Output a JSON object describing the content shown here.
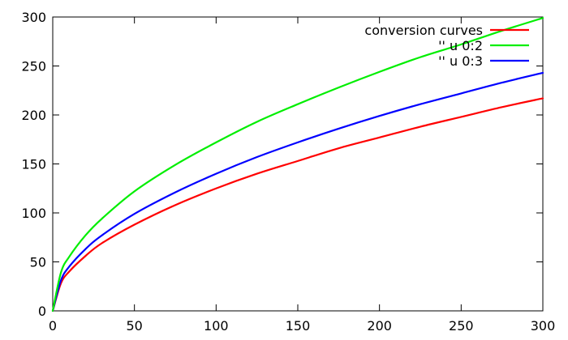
{
  "chart_data": {
    "type": "line",
    "title": "",
    "xlabel": "",
    "ylabel": "",
    "xlim": [
      0,
      300
    ],
    "ylim": [
      0,
      300
    ],
    "x_ticks": [
      0,
      50,
      100,
      150,
      200,
      250,
      300
    ],
    "y_ticks": [
      0,
      50,
      100,
      150,
      200,
      250,
      300
    ],
    "grid": false,
    "legend_position": "top-right",
    "series": [
      {
        "name": "conversion curves",
        "color": "#ff0000",
        "x": [
          0,
          5,
          10,
          20,
          30,
          50,
          75,
          100,
          125,
          150,
          175,
          200,
          225,
          250,
          275,
          300
        ],
        "y": [
          0,
          28,
          40,
          56,
          69,
          88,
          108,
          125,
          140,
          153,
          166,
          177,
          188,
          198,
          208,
          217
        ]
      },
      {
        "name": "'' u 0:2",
        "color": "#00ee00",
        "x": [
          0,
          5,
          10,
          20,
          30,
          50,
          75,
          100,
          125,
          150,
          175,
          200,
          225,
          250,
          275,
          300
        ],
        "y": [
          0,
          39,
          55,
          77,
          94,
          122,
          149,
          172,
          193,
          211,
          228,
          244,
          259,
          272,
          286,
          299
        ]
      },
      {
        "name": "'' u 0:3",
        "color": "#0000ff",
        "x": [
          0,
          5,
          10,
          20,
          30,
          50,
          75,
          100,
          125,
          150,
          175,
          200,
          225,
          250,
          275,
          300
        ],
        "y": [
          0,
          31,
          45,
          63,
          77,
          99,
          121,
          140,
          157,
          172,
          186,
          199,
          211,
          222,
          233,
          243
        ]
      }
    ]
  }
}
